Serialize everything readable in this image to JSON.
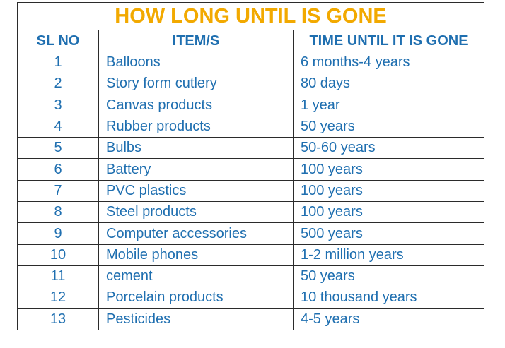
{
  "title": "HOW LONG UNTIL IS GONE",
  "headers": {
    "sl": "SL NO",
    "item": "ITEM/S",
    "time": "TIME UNTIL IT IS GONE"
  },
  "rows": [
    {
      "sl": "1",
      "item": "Balloons",
      "time": "6 months-4 years"
    },
    {
      "sl": "2",
      "item": "Story form cutlery",
      "time": "80 days"
    },
    {
      "sl": "3",
      "item": "Canvas products",
      "time": "1 year"
    },
    {
      "sl": "4",
      "item": "Rubber products",
      "time": "50 years"
    },
    {
      "sl": "5",
      "item": "Bulbs",
      "time": "50-60 years"
    },
    {
      "sl": "6",
      "item": "Battery",
      "time": "100 years"
    },
    {
      "sl": "7",
      "item": "PVC plastics",
      "time": "100 years"
    },
    {
      "sl": "8",
      "item": "Steel products",
      "time": "100 years"
    },
    {
      "sl": "9",
      "item": "Computer accessories",
      "time": "500 years"
    },
    {
      "sl": "10",
      "item": "Mobile phones",
      "time": "1-2 million years"
    },
    {
      "sl": "11",
      "item": "cement",
      "time": "50 years"
    },
    {
      "sl": "12",
      "item": "Porcelain products",
      "time": "10 thousand years"
    },
    {
      "sl": "13",
      "item": "Pesticides",
      "time": "4-5 years"
    }
  ],
  "colors": {
    "title": "#f2a900",
    "text": "#1f6fb0",
    "border": "#2b2b2b"
  }
}
